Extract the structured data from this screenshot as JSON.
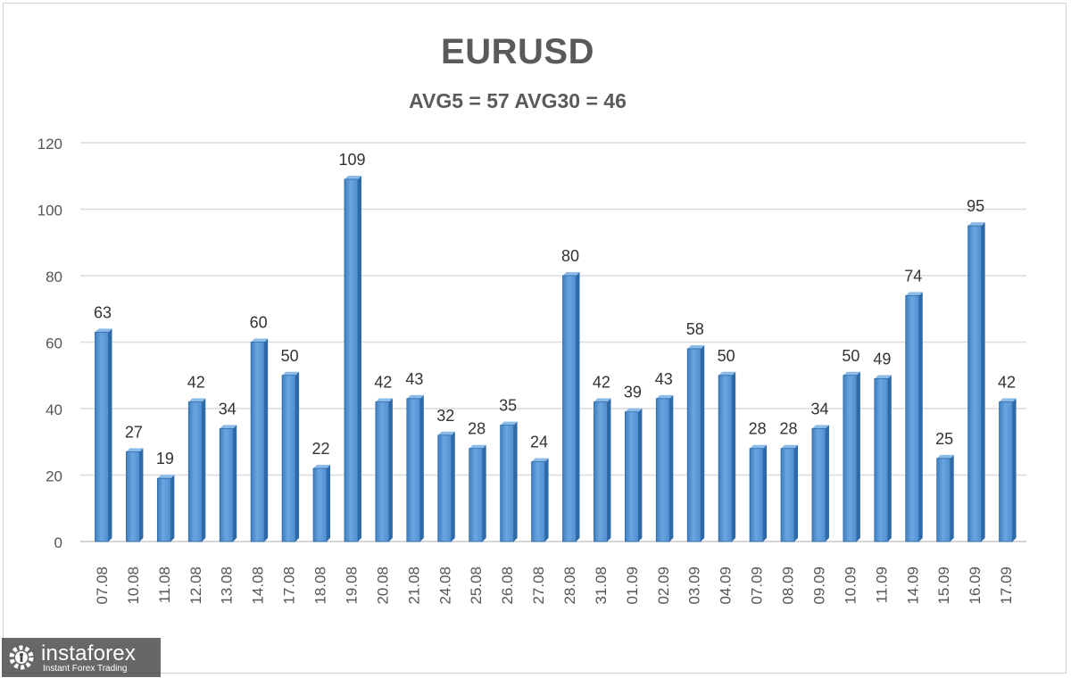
{
  "chart_data": {
    "type": "bar",
    "title": "EURUSD",
    "subtitle": "AVG5 = 57 AVG30 = 46",
    "categories": [
      "07.08",
      "10.08",
      "11.08",
      "12.08",
      "13.08",
      "14.08",
      "17.08",
      "18.08",
      "19.08",
      "20.08",
      "21.08",
      "24.08",
      "25.08",
      "26.08",
      "27.08",
      "28.08",
      "31.08",
      "01.09",
      "02.09",
      "03.09",
      "04.09",
      "07.09",
      "08.09",
      "09.09",
      "10.09",
      "11.09",
      "14.09",
      "15.09",
      "16.09",
      "17.09"
    ],
    "values": [
      63,
      27,
      19,
      42,
      34,
      60,
      50,
      22,
      109,
      42,
      43,
      32,
      28,
      35,
      24,
      80,
      42,
      39,
      43,
      58,
      50,
      28,
      28,
      34,
      50,
      49,
      74,
      25,
      95,
      42
    ],
    "ylim": [
      0,
      120
    ],
    "yticks": [
      0,
      20,
      40,
      60,
      80,
      100,
      120
    ],
    "grid": true,
    "data_labels": true,
    "bar_color": "#5b9bd5"
  },
  "watermark": {
    "brand": "instaforex",
    "tagline": "Instant Forex Trading"
  }
}
